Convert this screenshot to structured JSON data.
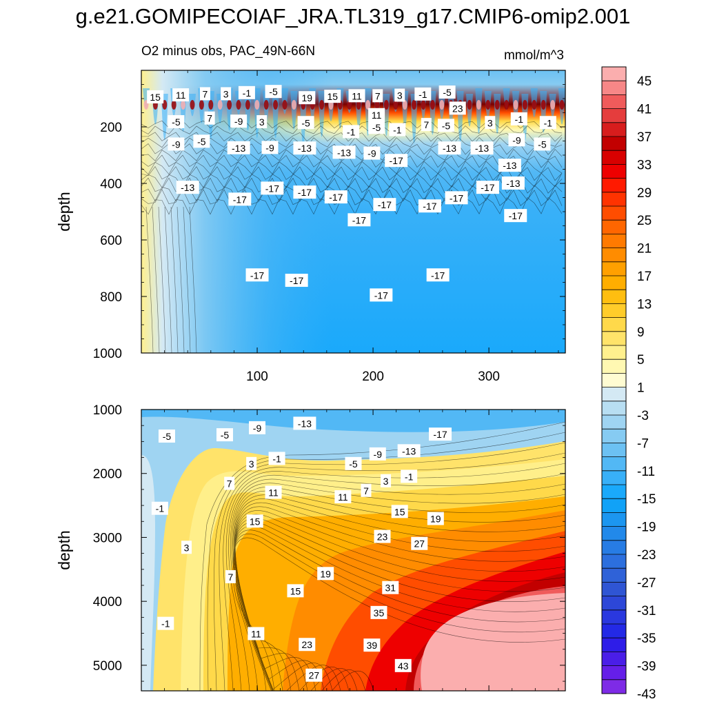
{
  "title": "g.e21.GOMIPECOIAF_JRA.TL319_g17.CMIP6-omip2.001",
  "subtitle_left": "O2 minus obs, PAC_49N-66N",
  "subtitle_right": "mmol/m^3",
  "chart_data": [
    {
      "type": "heatmap",
      "panel": "upper",
      "ylabel": "depth",
      "xlabel": "",
      "xlim": [
        0,
        366
      ],
      "ylim": [
        1000,
        0
      ],
      "x_ticks": [
        "100",
        "200",
        "300"
      ],
      "y_ticks": [
        "200",
        "400",
        "600",
        "800",
        "1000"
      ],
      "contour_labels": [
        {
          "x": 12,
          "y": 95,
          "text": "15"
        },
        {
          "x": 34,
          "y": 88,
          "text": "11"
        },
        {
          "x": 55,
          "y": 84,
          "text": "7"
        },
        {
          "x": 73,
          "y": 84,
          "text": "3"
        },
        {
          "x": 91,
          "y": 80,
          "text": "-1"
        },
        {
          "x": 114,
          "y": 76,
          "text": "-5"
        },
        {
          "x": 143,
          "y": 98,
          "text": "19"
        },
        {
          "x": 165,
          "y": 93,
          "text": "15"
        },
        {
          "x": 186,
          "y": 91,
          "text": "11"
        },
        {
          "x": 204,
          "y": 91,
          "text": "7"
        },
        {
          "x": 223,
          "y": 89,
          "text": "3"
        },
        {
          "x": 243,
          "y": 85,
          "text": "-1"
        },
        {
          "x": 264,
          "y": 78,
          "text": "-5"
        },
        {
          "x": 273,
          "y": 135,
          "text": "23"
        },
        {
          "x": 203,
          "y": 158,
          "text": "11"
        },
        {
          "x": 30,
          "y": 183,
          "text": "-5"
        },
        {
          "x": 59,
          "y": 170,
          "text": "7"
        },
        {
          "x": 84,
          "y": 181,
          "text": "-9"
        },
        {
          "x": 104,
          "y": 183,
          "text": "3"
        },
        {
          "x": 142,
          "y": 186,
          "text": "-5"
        },
        {
          "x": 181,
          "y": 218,
          "text": "-1"
        },
        {
          "x": 203,
          "y": 203,
          "text": "-5"
        },
        {
          "x": 221,
          "y": 211,
          "text": "-1"
        },
        {
          "x": 246,
          "y": 193,
          "text": "7"
        },
        {
          "x": 263,
          "y": 196,
          "text": "-5"
        },
        {
          "x": 301,
          "y": 186,
          "text": "3"
        },
        {
          "x": 326,
          "y": 173,
          "text": "-1"
        },
        {
          "x": 351,
          "y": 186,
          "text": "-1"
        },
        {
          "x": 30,
          "y": 262,
          "text": "-9"
        },
        {
          "x": 52,
          "y": 252,
          "text": "-5"
        },
        {
          "x": 84,
          "y": 275,
          "text": "-13"
        },
        {
          "x": 111,
          "y": 274,
          "text": "-9"
        },
        {
          "x": 141,
          "y": 276,
          "text": "-13"
        },
        {
          "x": 175,
          "y": 291,
          "text": "-13"
        },
        {
          "x": 199,
          "y": 294,
          "text": "-9"
        },
        {
          "x": 220,
          "y": 320,
          "text": "-17"
        },
        {
          "x": 266,
          "y": 276,
          "text": "-13"
        },
        {
          "x": 294,
          "y": 276,
          "text": "-13"
        },
        {
          "x": 324,
          "y": 247,
          "text": "-9"
        },
        {
          "x": 346,
          "y": 262,
          "text": "-5"
        },
        {
          "x": 318,
          "y": 337,
          "text": "-13"
        },
        {
          "x": 40,
          "y": 415,
          "text": "-13"
        },
        {
          "x": 85,
          "y": 457,
          "text": "-17"
        },
        {
          "x": 113,
          "y": 418,
          "text": "-17"
        },
        {
          "x": 141,
          "y": 432,
          "text": "-17"
        },
        {
          "x": 168,
          "y": 449,
          "text": "-17"
        },
        {
          "x": 188,
          "y": 530,
          "text": "-17"
        },
        {
          "x": 210,
          "y": 476,
          "text": "-17"
        },
        {
          "x": 249,
          "y": 481,
          "text": "-17"
        },
        {
          "x": 272,
          "y": 452,
          "text": "-17"
        },
        {
          "x": 299,
          "y": 415,
          "text": "-17"
        },
        {
          "x": 321,
          "y": 400,
          "text": "-13"
        },
        {
          "x": 323,
          "y": 515,
          "text": "-17"
        },
        {
          "x": 100,
          "y": 725,
          "text": "-17"
        },
        {
          "x": 134,
          "y": 744,
          "text": "-17"
        },
        {
          "x": 207,
          "y": 796,
          "text": "-17"
        },
        {
          "x": 256,
          "y": 725,
          "text": "-17"
        }
      ]
    },
    {
      "type": "heatmap",
      "panel": "lower",
      "ylabel": "depth",
      "xlabel": "",
      "xlim": [
        0,
        366
      ],
      "ylim": [
        5400,
        1000
      ],
      "x_ticks": [],
      "y_ticks": [
        "1000",
        "2000",
        "3000",
        "4000",
        "5000"
      ],
      "contour_labels": [
        {
          "x": 22,
          "y": 1420,
          "text": "-5"
        },
        {
          "x": 72,
          "y": 1400,
          "text": "-5"
        },
        {
          "x": 100,
          "y": 1290,
          "text": "-9"
        },
        {
          "x": 141,
          "y": 1220,
          "text": "-13"
        },
        {
          "x": 258,
          "y": 1390,
          "text": "-17"
        },
        {
          "x": 231,
          "y": 1650,
          "text": "-13"
        },
        {
          "x": 204,
          "y": 1700,
          "text": "-9"
        },
        {
          "x": 183,
          "y": 1850,
          "text": "-5"
        },
        {
          "x": 117,
          "y": 1770,
          "text": "-1"
        },
        {
          "x": 95,
          "y": 1850,
          "text": "3"
        },
        {
          "x": 231,
          "y": 2050,
          "text": "-1"
        },
        {
          "x": 211,
          "y": 2120,
          "text": "3"
        },
        {
          "x": 194,
          "y": 2270,
          "text": "7"
        },
        {
          "x": 174,
          "y": 2370,
          "text": "11"
        },
        {
          "x": 76,
          "y": 2160,
          "text": "7"
        },
        {
          "x": 114,
          "y": 2300,
          "text": "11"
        },
        {
          "x": 16,
          "y": 2550,
          "text": "-1"
        },
        {
          "x": 223,
          "y": 2600,
          "text": "15"
        },
        {
          "x": 254,
          "y": 2710,
          "text": "19"
        },
        {
          "x": 98,
          "y": 2750,
          "text": "15"
        },
        {
          "x": 208,
          "y": 2990,
          "text": "23"
        },
        {
          "x": 240,
          "y": 3100,
          "text": "27"
        },
        {
          "x": 39,
          "y": 3160,
          "text": "3"
        },
        {
          "x": 159,
          "y": 3570,
          "text": "19"
        },
        {
          "x": 77,
          "y": 3620,
          "text": "7"
        },
        {
          "x": 133,
          "y": 3840,
          "text": "15"
        },
        {
          "x": 215,
          "y": 3790,
          "text": "31"
        },
        {
          "x": 205,
          "y": 4180,
          "text": "35"
        },
        {
          "x": 21,
          "y": 4350,
          "text": "-1"
        },
        {
          "x": 99,
          "y": 4510,
          "text": "11"
        },
        {
          "x": 143,
          "y": 4680,
          "text": "23"
        },
        {
          "x": 199,
          "y": 4690,
          "text": "39"
        },
        {
          "x": 226,
          "y": 5010,
          "text": "43"
        },
        {
          "x": 149,
          "y": 5160,
          "text": "27"
        }
      ]
    }
  ],
  "colorbar": {
    "labels": [
      "45",
      "41",
      "37",
      "33",
      "29",
      "25",
      "21",
      "17",
      "13",
      "9",
      "5",
      "1",
      "-3",
      "-7",
      "-11",
      "-15",
      "-19",
      "-23",
      "-27",
      "-31",
      "-35",
      "-39",
      "-43"
    ],
    "colors": [
      "#fbaeae",
      "#f78787",
      "#f05b5b",
      "#e53d3d",
      "#d71d1d",
      "#c20000",
      "#d80000",
      "#ee0000",
      "#ff1a00",
      "#ff3300",
      "#ff4d00",
      "#ff6600",
      "#ff7a00",
      "#ff8c00",
      "#ffa000",
      "#ffae00",
      "#ffbe10",
      "#ffcc2a",
      "#ffd94a",
      "#ffe36a",
      "#fff08e",
      "#fff8b2",
      "#fffcd2",
      "#d4e9f4",
      "#b8def2",
      "#9fd4f2",
      "#86cbf2",
      "#6cc1f3",
      "#52b8f5",
      "#38b0f8",
      "#1aa9fb",
      "#11a2f7",
      "#1c96f0",
      "#2289ea",
      "#277ce4",
      "#2c6fde",
      "#2f62d8",
      "#2f55d4",
      "#2d47d8",
      "#2a38df",
      "#2329e6",
      "#2e1de8",
      "#4a1ee8",
      "#651fe8",
      "#7e2be6"
    ]
  }
}
